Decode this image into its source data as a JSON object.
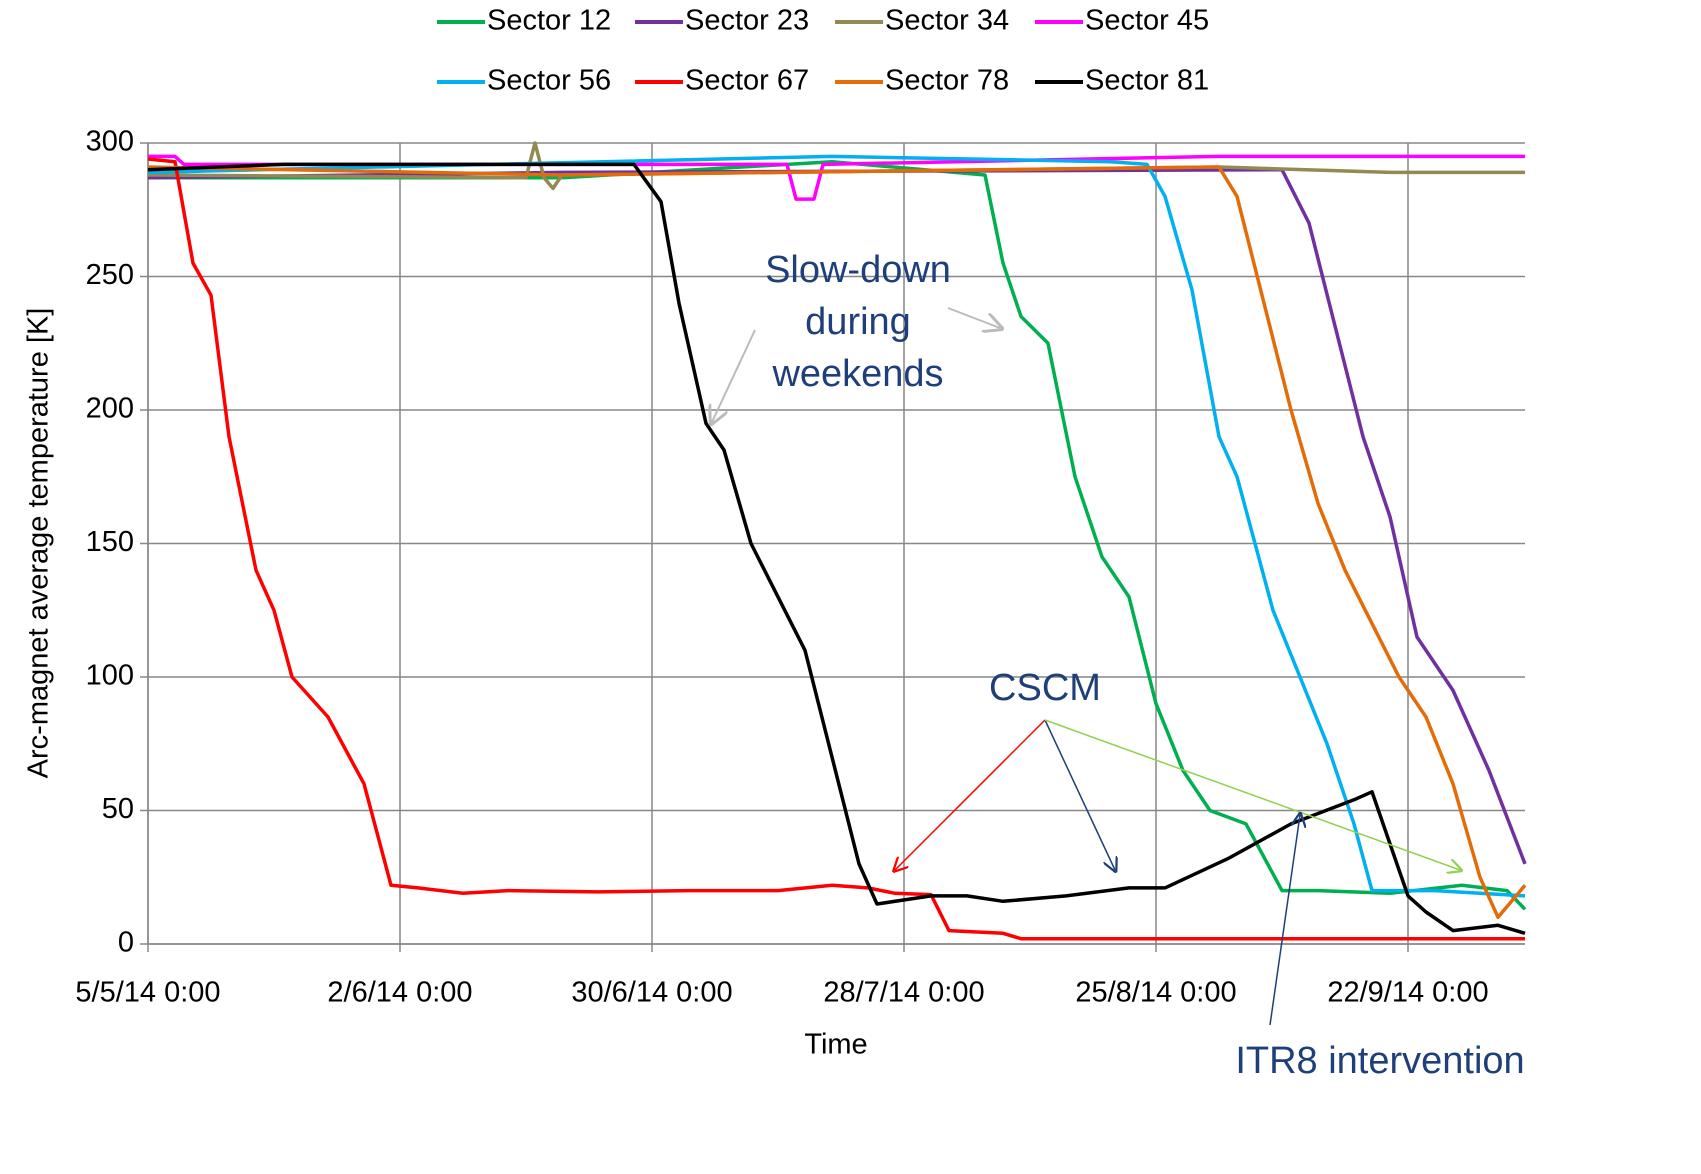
{
  "chart_data": {
    "type": "line",
    "xlabel": "Time",
    "ylabel": "Arc-magnet average temperature [K]",
    "xlim": [
      "2014-05-05",
      "2014-10-05"
    ],
    "xticks": [
      {
        "value": "2014-05-05",
        "label": "5/5/14 0:00"
      },
      {
        "value": "2014-06-02",
        "label": "2/6/14 0:00"
      },
      {
        "value": "2014-06-30",
        "label": "30/6/14 0:00"
      },
      {
        "value": "2014-07-28",
        "label": "28/7/14 0:00"
      },
      {
        "value": "2014-08-25",
        "label": "25/8/14 0:00"
      },
      {
        "value": "2014-09-22",
        "label": "22/9/14 0:00"
      }
    ],
    "ylim": [
      0,
      300
    ],
    "yticks": [
      0,
      50,
      100,
      150,
      200,
      250,
      300
    ],
    "grid": true,
    "legend": "top",
    "annotations": [
      {
        "lines": [
          "Slow-down",
          "during",
          "weekends"
        ]
      },
      {
        "lines": [
          "CSCM"
        ]
      },
      {
        "lines": [
          "ITR8 intervention"
        ]
      }
    ],
    "series": [
      {
        "name": "Sector 12",
        "color": "#00b050",
        "x": [
          "2014-05-05",
          "2014-06-20",
          "2014-07-20",
          "2014-08-06",
          "2014-08-08",
          "2014-08-10",
          "2014-08-13",
          "2014-08-16",
          "2014-08-19",
          "2014-08-22",
          "2014-08-25",
          "2014-08-28",
          "2014-08-31",
          "2014-09-04",
          "2014-09-08",
          "2014-09-12",
          "2014-09-20",
          "2014-09-28",
          "2014-10-03",
          "2014-10-05"
        ],
        "values": [
          287,
          287,
          293,
          288,
          255,
          235,
          225,
          175,
          145,
          130,
          90,
          65,
          50,
          45,
          20,
          20,
          19,
          22,
          20,
          13
        ]
      },
      {
        "name": "Sector 23",
        "color": "#7030a0",
        "x": [
          "2014-05-05",
          "2014-06-20",
          "2014-09-08",
          "2014-09-11",
          "2014-09-14",
          "2014-09-17",
          "2014-09-20",
          "2014-09-23",
          "2014-09-27",
          "2014-10-01",
          "2014-10-05"
        ],
        "values": [
          287,
          289,
          290,
          270,
          230,
          190,
          160,
          115,
          95,
          65,
          30
        ]
      },
      {
        "name": "Sector 34",
        "color": "#938953",
        "x": [
          "2014-05-05",
          "2014-06-16",
          "2014-06-17",
          "2014-06-18",
          "2014-06-19",
          "2014-06-20",
          "2014-09-01",
          "2014-09-20",
          "2014-10-05"
        ],
        "values": [
          288,
          287,
          300,
          287,
          283,
          288,
          291,
          289,
          289
        ]
      },
      {
        "name": "Sector 45",
        "color": "#ff00ff",
        "x": [
          "2014-05-05",
          "2014-05-08",
          "2014-05-09",
          "2014-07-15",
          "2014-07-16",
          "2014-07-18",
          "2014-07-19",
          "2014-09-01",
          "2014-10-05"
        ],
        "values": [
          295,
          295,
          292,
          292,
          279,
          279,
          292,
          295,
          295
        ]
      },
      {
        "name": "Sector 56",
        "color": "#00b0f0",
        "x": [
          "2014-05-05",
          "2014-06-12",
          "2014-07-20",
          "2014-08-20",
          "2014-08-24",
          "2014-08-26",
          "2014-08-29",
          "2014-09-01",
          "2014-09-03",
          "2014-09-07",
          "2014-09-10",
          "2014-09-13",
          "2014-09-16",
          "2014-09-18",
          "2014-09-25",
          "2014-10-05"
        ],
        "values": [
          289,
          292,
          295,
          293,
          292,
          280,
          245,
          190,
          175,
          125,
          100,
          75,
          45,
          20,
          20,
          18
        ]
      },
      {
        "name": "Sector 67",
        "color": "#ff0000",
        "x": [
          "2014-05-05",
          "2014-05-08",
          "2014-05-10",
          "2014-05-12",
          "2014-05-14",
          "2014-05-17",
          "2014-05-19",
          "2014-05-21",
          "2014-05-25",
          "2014-05-29",
          "2014-06-01",
          "2014-06-04",
          "2014-06-09",
          "2014-06-14",
          "2014-06-24",
          "2014-07-04",
          "2014-07-14",
          "2014-07-20",
          "2014-07-24",
          "2014-07-27",
          "2014-07-31",
          "2014-08-02",
          "2014-08-08",
          "2014-08-10",
          "2014-10-05"
        ],
        "values": [
          294,
          293,
          255,
          243,
          190,
          140,
          125,
          100,
          85,
          60,
          22,
          21,
          19,
          20,
          19.5,
          20,
          20,
          22,
          21,
          19,
          18.5,
          5,
          4,
          2,
          2
        ]
      },
      {
        "name": "Sector 78",
        "color": "#e36c09",
        "x": [
          "2014-05-05",
          "2014-06-20",
          "2014-09-01",
          "2014-09-03",
          "2014-09-06",
          "2014-09-09",
          "2014-09-12",
          "2014-09-15",
          "2014-09-18",
          "2014-09-21",
          "2014-09-24",
          "2014-09-27",
          "2014-09-30",
          "2014-10-02",
          "2014-10-05"
        ],
        "values": [
          291,
          288,
          291,
          280,
          240,
          200,
          165,
          140,
          120,
          100,
          85,
          60,
          25,
          10,
          22
        ]
      },
      {
        "name": "Sector 81",
        "color": "#000000",
        "x": [
          "2014-05-05",
          "2014-05-20",
          "2014-06-14",
          "2014-06-28",
          "2014-07-01",
          "2014-07-03",
          "2014-07-06",
          "2014-07-08",
          "2014-07-11",
          "2014-07-14",
          "2014-07-17",
          "2014-07-20",
          "2014-07-23",
          "2014-07-25",
          "2014-07-31",
          "2014-08-04",
          "2014-08-08",
          "2014-08-15",
          "2014-08-22",
          "2014-08-26",
          "2014-09-02",
          "2014-09-09",
          "2014-09-16",
          "2014-09-18",
          "2014-09-22",
          "2014-09-24",
          "2014-09-27",
          "2014-10-02",
          "2014-10-05"
        ],
        "values": [
          290,
          292,
          292,
          292,
          278,
          240,
          195,
          185,
          150,
          130,
          110,
          70,
          30,
          15,
          18,
          18,
          16,
          18,
          21,
          21,
          32,
          45,
          54,
          57,
          18,
          12,
          5,
          7,
          4
        ]
      }
    ]
  }
}
